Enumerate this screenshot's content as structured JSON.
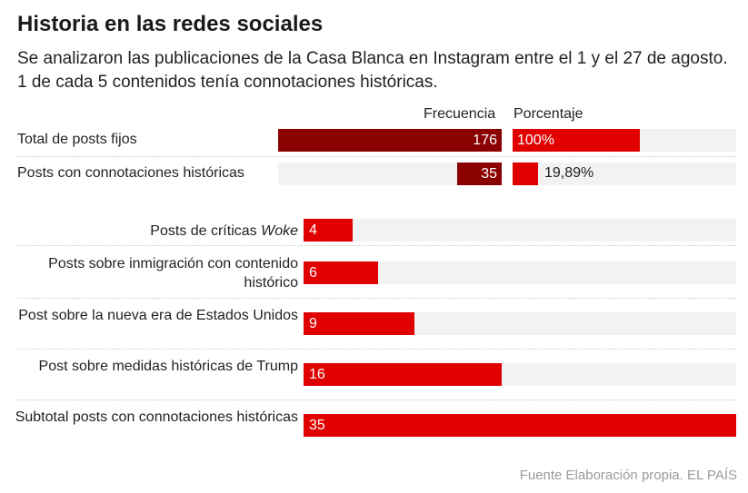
{
  "title": "Historia en las redes sociales",
  "subtitle": "Se analizaron las publicaciones de la Casa Blanca en Instagram entre el 1 y el 27 de agosto. 1 de cada 5 contenidos tenía connotaciones históricas.",
  "source": "Fuente Elaboración propia. EL PAÍS",
  "colors": {
    "dark_red": "#8b0000",
    "red": "#e00000",
    "track": "#f2f2f2"
  },
  "chart_data": [
    {
      "type": "table",
      "columns": [
        "Frecuencia",
        "Porcentaje"
      ],
      "rows": [
        {
          "label": "Total de posts fijos",
          "frecuencia": 176,
          "frecuencia_label": "176",
          "porcentaje": 100,
          "porcentaje_label": "100%"
        },
        {
          "label": "Posts con connotaciones históricas",
          "frecuencia": 35,
          "frecuencia_label": "35",
          "porcentaje": 19.89,
          "porcentaje_label": "19,89%"
        }
      ]
    },
    {
      "type": "bar",
      "orientation": "horizontal",
      "categories": [
        {
          "text": "Posts de críticas ",
          "em": "Woke"
        },
        {
          "text": "Posts sobre inmigración con contenido histórico",
          "em": ""
        },
        {
          "text": "Post sobre la nueva era de Estados Unidos",
          "em": ""
        },
        {
          "text": "Post sobre medidas históricas de Trump",
          "em": ""
        },
        {
          "text": "Subtotal posts con connotaciones históricas",
          "em": ""
        }
      ],
      "values": [
        4,
        6,
        9,
        16,
        35
      ],
      "value_labels": [
        "4",
        "6",
        "9",
        "16",
        "35"
      ],
      "xlim": [
        0,
        35
      ]
    }
  ]
}
